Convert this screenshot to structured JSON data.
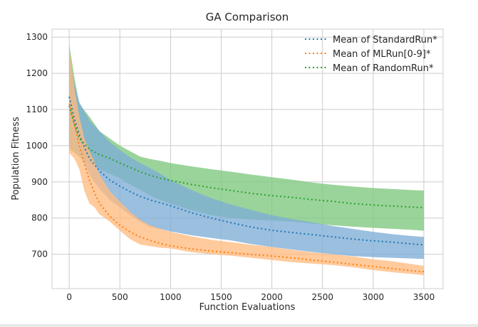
{
  "chart_data": {
    "type": "line",
    "title": "GA Comparison",
    "xlabel": "Function Evaluations",
    "ylabel": "Population Fitness",
    "xlim": [
      -170,
      3690
    ],
    "ylim": [
      605,
      1322
    ],
    "xticks": [
      0,
      500,
      1000,
      1500,
      2000,
      2500,
      3000,
      3500
    ],
    "yticks": [
      700,
      800,
      900,
      1000,
      1100,
      1200,
      1300
    ],
    "grid": true,
    "legend_position": "top-right",
    "series": [
      {
        "name": "Mean of StandardRun*",
        "color": "#1f77b4",
        "fill_color": "#7eadd6",
        "x": [
          0,
          50,
          100,
          150,
          200,
          300,
          400,
          500,
          600,
          700,
          800,
          900,
          1000,
          1200,
          1400,
          1600,
          1800,
          2000,
          2200,
          2400,
          2600,
          2800,
          3000,
          3200,
          3400,
          3500
        ],
        "mean": [
          1135,
          1075,
          1030,
          995,
          965,
          930,
          905,
          888,
          873,
          860,
          850,
          842,
          834,
          815,
          800,
          787,
          775,
          766,
          760,
          754,
          748,
          742,
          737,
          733,
          728,
          726
        ],
        "upper": [
          1255,
          1170,
          1120,
          1095,
          1070,
          1040,
          1010,
          988,
          968,
          952,
          938,
          922,
          905,
          878,
          855,
          837,
          822,
          808,
          797,
          788,
          778,
          770,
          762,
          755,
          750,
          748
        ],
        "lower": [
          1000,
          985,
          970,
          950,
          920,
          880,
          850,
          830,
          808,
          790,
          775,
          770,
          763,
          753,
          745,
          738,
          728,
          720,
          713,
          706,
          700,
          695,
          692,
          690,
          688,
          687
        ]
      },
      {
        "name": "Mean of MLRun[0-9]*",
        "color": "#ff7f0e",
        "fill_color": "#ffbb80",
        "x": [
          0,
          50,
          100,
          150,
          200,
          250,
          300,
          400,
          500,
          600,
          700,
          800,
          900,
          1000,
          1200,
          1400,
          1600,
          1800,
          2000,
          2200,
          2400,
          2600,
          2800,
          3000,
          3200,
          3400,
          3500
        ],
        "mean": [
          1115,
          1060,
          1000,
          950,
          905,
          870,
          840,
          805,
          780,
          762,
          748,
          738,
          730,
          723,
          715,
          709,
          704,
          699,
          695,
          690,
          684,
          678,
          672,
          666,
          660,
          654,
          652
        ],
        "upper": [
          1270,
          1160,
          1080,
          1020,
          985,
          955,
          920,
          875,
          845,
          818,
          795,
          780,
          770,
          762,
          750,
          740,
          733,
          726,
          720,
          712,
          705,
          700,
          694,
          686,
          680,
          672,
          668
        ],
        "lower": [
          980,
          965,
          935,
          875,
          840,
          830,
          810,
          790,
          765,
          742,
          727,
          722,
          718,
          716,
          706,
          700,
          696,
          690,
          684,
          678,
          674,
          670,
          664,
          656,
          650,
          645,
          642
        ]
      },
      {
        "name": "Mean of RandomRun*",
        "color": "#2ca02c",
        "fill_color": "#7dc87d",
        "x": [
          0,
          50,
          100,
          200,
          300,
          400,
          500,
          600,
          700,
          800,
          900,
          1000,
          1200,
          1400,
          1600,
          1800,
          2000,
          2200,
          2400,
          2600,
          2800,
          3000,
          3200,
          3400,
          3500
        ],
        "mean": [
          1110,
          1060,
          1020,
          990,
          975,
          965,
          952,
          940,
          928,
          918,
          910,
          904,
          893,
          884,
          876,
          868,
          862,
          857,
          851,
          846,
          840,
          836,
          833,
          830,
          829
        ],
        "upper": [
          1280,
          1190,
          1115,
          1080,
          1040,
          1020,
          1000,
          985,
          970,
          963,
          958,
          952,
          943,
          935,
          928,
          920,
          913,
          906,
          898,
          892,
          887,
          883,
          880,
          877,
          876
        ],
        "lower": [
          990,
          980,
          970,
          950,
          935,
          922,
          910,
          893,
          878,
          862,
          850,
          840,
          822,
          808,
          800,
          796,
          793,
          790,
          785,
          780,
          776,
          773,
          770,
          767,
          765
        ]
      }
    ]
  }
}
